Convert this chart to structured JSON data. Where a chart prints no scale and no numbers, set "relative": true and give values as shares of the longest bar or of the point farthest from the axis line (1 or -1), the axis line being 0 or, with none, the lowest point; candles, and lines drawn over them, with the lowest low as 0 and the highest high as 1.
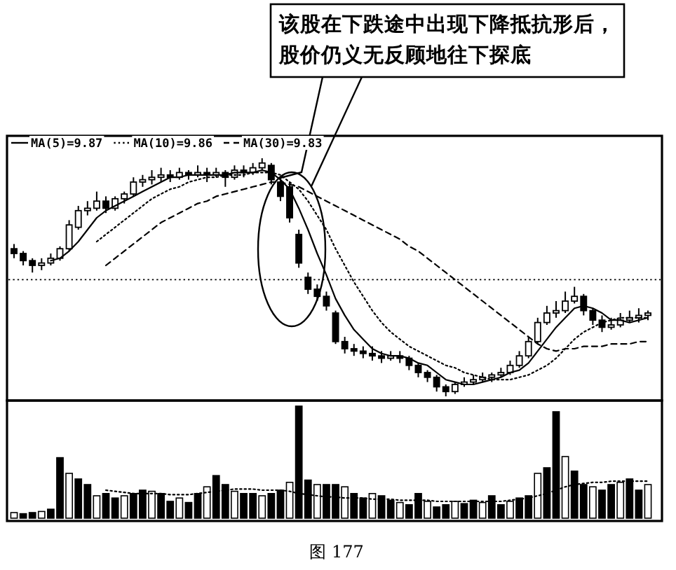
{
  "chart_data": [
    {
      "type": "candlestick",
      "relative": true,
      "legend": "top left",
      "categories": [
        null,
        null,
        null,
        null,
        null,
        null,
        null,
        null,
        null,
        null,
        null,
        null,
        null,
        null,
        null,
        null,
        null,
        null,
        null,
        null,
        null,
        null,
        null,
        null,
        null,
        null,
        null,
        null,
        null,
        null,
        null,
        null,
        null,
        null,
        null,
        null,
        null,
        null,
        null,
        null,
        null,
        null,
        null,
        null,
        null,
        null,
        null,
        null,
        null,
        null,
        null,
        null,
        null,
        null,
        null,
        null,
        null,
        null,
        null,
        null,
        null,
        null,
        null,
        null,
        null,
        null,
        null,
        null,
        null,
        null
      ],
      "ohlc": [
        [
          0.62,
          0.64,
          0.58,
          0.6
        ],
        [
          0.6,
          0.61,
          0.55,
          0.57
        ],
        [
          0.57,
          0.58,
          0.52,
          0.55
        ],
        [
          0.55,
          0.58,
          0.53,
          0.56
        ],
        [
          0.56,
          0.6,
          0.55,
          0.58
        ],
        [
          0.58,
          0.63,
          0.57,
          0.62
        ],
        [
          0.62,
          0.74,
          0.61,
          0.72
        ],
        [
          0.71,
          0.8,
          0.7,
          0.78
        ],
        [
          0.78,
          0.82,
          0.76,
          0.79
        ],
        [
          0.79,
          0.86,
          0.78,
          0.82
        ],
        [
          0.82,
          0.84,
          0.77,
          0.79
        ],
        [
          0.79,
          0.84,
          0.78,
          0.83
        ],
        [
          0.83,
          0.86,
          0.81,
          0.85
        ],
        [
          0.85,
          0.92,
          0.84,
          0.9
        ],
        [
          0.9,
          0.93,
          0.88,
          0.91
        ],
        [
          0.91,
          0.95,
          0.89,
          0.92
        ],
        [
          0.92,
          0.96,
          0.9,
          0.93
        ],
        [
          0.93,
          0.95,
          0.9,
          0.92
        ],
        [
          0.92,
          0.96,
          0.91,
          0.94
        ],
        [
          0.94,
          0.95,
          0.91,
          0.93
        ],
        [
          0.93,
          0.97,
          0.92,
          0.94
        ],
        [
          0.94,
          0.96,
          0.9,
          0.93
        ],
        [
          0.93,
          0.96,
          0.92,
          0.94
        ],
        [
          0.94,
          0.95,
          0.88,
          0.92
        ],
        [
          0.92,
          0.97,
          0.91,
          0.95
        ],
        [
          0.95,
          0.97,
          0.92,
          0.94
        ],
        [
          0.94,
          0.98,
          0.93,
          0.96
        ],
        [
          0.96,
          1.0,
          0.95,
          0.98
        ],
        [
          0.97,
          0.98,
          0.89,
          0.91
        ],
        [
          0.9,
          0.92,
          0.82,
          0.84
        ],
        [
          0.88,
          0.9,
          0.73,
          0.75
        ],
        [
          0.68,
          0.7,
          0.54,
          0.56
        ],
        [
          0.5,
          0.52,
          0.43,
          0.45
        ],
        [
          0.45,
          0.47,
          0.4,
          0.42
        ],
        [
          0.42,
          0.44,
          0.36,
          0.38
        ],
        [
          0.35,
          0.36,
          0.22,
          0.23
        ],
        [
          0.23,
          0.25,
          0.18,
          0.2
        ],
        [
          0.2,
          0.22,
          0.17,
          0.19
        ],
        [
          0.19,
          0.21,
          0.16,
          0.18
        ],
        [
          0.18,
          0.21,
          0.15,
          0.17
        ],
        [
          0.17,
          0.19,
          0.14,
          0.16
        ],
        [
          0.16,
          0.19,
          0.15,
          0.17
        ],
        [
          0.17,
          0.19,
          0.14,
          0.16
        ],
        [
          0.16,
          0.17,
          0.11,
          0.13
        ],
        [
          0.13,
          0.14,
          0.08,
          0.1
        ],
        [
          0.1,
          0.11,
          0.06,
          0.08
        ],
        [
          0.08,
          0.09,
          0.02,
          0.04
        ],
        [
          0.04,
          0.05,
          0.0,
          0.02
        ],
        [
          0.02,
          0.06,
          0.01,
          0.05
        ],
        [
          0.05,
          0.08,
          0.04,
          0.06
        ],
        [
          0.06,
          0.09,
          0.05,
          0.07
        ],
        [
          0.07,
          0.1,
          0.06,
          0.08
        ],
        [
          0.08,
          0.1,
          0.06,
          0.09
        ],
        [
          0.09,
          0.12,
          0.08,
          0.1
        ],
        [
          0.1,
          0.15,
          0.09,
          0.13
        ],
        [
          0.13,
          0.19,
          0.12,
          0.17
        ],
        [
          0.17,
          0.25,
          0.16,
          0.23
        ],
        [
          0.23,
          0.33,
          0.22,
          0.31
        ],
        [
          0.31,
          0.38,
          0.3,
          0.35
        ],
        [
          0.35,
          0.4,
          0.33,
          0.36
        ],
        [
          0.36,
          0.44,
          0.35,
          0.4
        ],
        [
          0.4,
          0.46,
          0.39,
          0.42
        ],
        [
          0.42,
          0.43,
          0.34,
          0.36
        ],
        [
          0.36,
          0.37,
          0.3,
          0.32
        ],
        [
          0.32,
          0.34,
          0.27,
          0.29
        ],
        [
          0.29,
          0.33,
          0.28,
          0.3
        ],
        [
          0.3,
          0.35,
          0.29,
          0.32
        ],
        [
          0.32,
          0.36,
          0.31,
          0.33
        ],
        [
          0.33,
          0.37,
          0.31,
          0.34
        ],
        [
          0.34,
          0.36,
          0.32,
          0.35
        ]
      ],
      "series": [
        {
          "name": "MA(5)=9.87",
          "type": "line",
          "line_style": "solid",
          "color": "#000000",
          "values": [
            null,
            null,
            null,
            null,
            0.57,
            0.58,
            0.61,
            0.65,
            0.7,
            0.75,
            0.78,
            0.8,
            0.82,
            0.84,
            0.86,
            0.88,
            0.9,
            0.92,
            0.92,
            0.93,
            0.93,
            0.93,
            0.93,
            0.93,
            0.94,
            0.94,
            0.94,
            0.95,
            0.94,
            0.91,
            0.87,
            0.79,
            0.7,
            0.6,
            0.51,
            0.41,
            0.34,
            0.28,
            0.24,
            0.2,
            0.18,
            0.17,
            0.17,
            0.16,
            0.14,
            0.13,
            0.1,
            0.07,
            0.06,
            0.05,
            0.05,
            0.06,
            0.07,
            0.08,
            0.1,
            0.11,
            0.14,
            0.19,
            0.24,
            0.29,
            0.33,
            0.37,
            0.38,
            0.37,
            0.35,
            0.32,
            0.32,
            0.31,
            0.32,
            0.33
          ]
        },
        {
          "name": "MA(10)=9.86",
          "type": "line",
          "line_style": "dotted",
          "color": "#000000",
          "values": [
            null,
            null,
            null,
            null,
            null,
            null,
            null,
            null,
            null,
            0.65,
            0.68,
            0.71,
            0.74,
            0.77,
            0.8,
            0.83,
            0.85,
            0.87,
            0.88,
            0.9,
            0.91,
            0.92,
            0.92,
            0.93,
            0.93,
            0.93,
            0.94,
            0.94,
            0.94,
            0.93,
            0.9,
            0.87,
            0.82,
            0.76,
            0.7,
            0.62,
            0.55,
            0.48,
            0.42,
            0.36,
            0.31,
            0.27,
            0.24,
            0.21,
            0.19,
            0.17,
            0.15,
            0.13,
            0.12,
            0.1,
            0.09,
            0.08,
            0.07,
            0.07,
            0.07,
            0.08,
            0.09,
            0.11,
            0.13,
            0.16,
            0.2,
            0.24,
            0.27,
            0.29,
            0.31,
            0.32,
            0.33,
            0.33,
            0.33,
            0.33
          ]
        },
        {
          "name": "MA(30)=9.83",
          "type": "line",
          "line_style": "dashed",
          "color": "#000000",
          "values": [
            null,
            null,
            null,
            null,
            null,
            null,
            null,
            null,
            null,
            null,
            0.55,
            0.58,
            0.61,
            0.64,
            0.67,
            0.7,
            0.73,
            0.75,
            0.77,
            0.79,
            0.81,
            0.82,
            0.84,
            0.85,
            0.86,
            0.87,
            0.88,
            0.89,
            0.9,
            0.9,
            0.89,
            0.88,
            0.86,
            0.84,
            0.82,
            0.8,
            0.78,
            0.76,
            0.74,
            0.72,
            0.7,
            0.68,
            0.66,
            0.63,
            0.61,
            0.58,
            0.55,
            0.52,
            0.49,
            0.46,
            0.43,
            0.4,
            0.37,
            0.34,
            0.31,
            0.28,
            0.25,
            0.22,
            0.2,
            0.19,
            0.2,
            0.2,
            0.21,
            0.21,
            0.21,
            0.22,
            0.22,
            0.22,
            0.23,
            0.23
          ]
        }
      ],
      "ref_lines": [
        {
          "axis": "y",
          "value": 0.49,
          "line_style": "dotted"
        }
      ],
      "annotations": [
        "该股在下跌途中出现下降抵抗形后，",
        "股价仍义无反顾地往下探底",
        "图 177"
      ]
    },
    {
      "type": "bar",
      "relative": true,
      "categories": [
        null,
        null,
        null,
        null,
        null,
        null,
        null,
        null,
        null,
        null,
        null,
        null,
        null,
        null,
        null,
        null,
        null,
        null,
        null,
        null,
        null,
        null,
        null,
        null,
        null,
        null,
        null,
        null,
        null,
        null,
        null,
        null,
        null,
        null,
        null,
        null,
        null,
        null,
        null,
        null,
        null,
        null,
        null,
        null,
        null,
        null,
        null,
        null,
        null,
        null,
        null,
        null,
        null,
        null,
        null,
        null,
        null,
        null,
        null,
        null,
        null,
        null,
        null,
        null,
        null,
        null,
        null,
        null,
        null,
        null
      ],
      "series": [
        {
          "type": "bar",
          "color": "#000000",
          "values": [
            0.05,
            0.04,
            0.05,
            0.06,
            0.08,
            0.54,
            0.4,
            0.35,
            0.3,
            0.2,
            0.22,
            0.18,
            0.2,
            0.22,
            0.25,
            0.24,
            0.22,
            0.15,
            0.18,
            0.14,
            0.22,
            0.28,
            0.38,
            0.3,
            0.24,
            0.22,
            0.22,
            0.2,
            0.22,
            0.25,
            0.32,
            1.0,
            0.34,
            0.3,
            0.3,
            0.3,
            0.28,
            0.22,
            0.18,
            0.22,
            0.2,
            0.16,
            0.14,
            0.12,
            0.22,
            0.15,
            0.1,
            0.12,
            0.15,
            0.13,
            0.16,
            0.14,
            0.2,
            0.12,
            0.15,
            0.18,
            0.2,
            0.4,
            0.45,
            0.95,
            0.55,
            0.42,
            0.3,
            0.28,
            0.25,
            0.3,
            0.32,
            0.35,
            0.25,
            0.3
          ]
        },
        {
          "type": "line",
          "line_style": "dotted",
          "color": "#000000",
          "values": [
            null,
            null,
            null,
            null,
            null,
            null,
            null,
            null,
            null,
            null,
            0.25,
            0.24,
            0.23,
            0.22,
            0.22,
            0.22,
            0.22,
            0.21,
            0.21,
            0.21,
            0.22,
            0.23,
            0.24,
            0.25,
            0.26,
            0.26,
            0.26,
            0.25,
            0.25,
            0.25,
            0.24,
            0.22,
            0.21,
            0.2,
            0.19,
            0.19,
            0.18,
            0.18,
            0.18,
            0.17,
            0.17,
            0.17,
            0.16,
            0.16,
            0.16,
            0.16,
            0.15,
            0.15,
            0.15,
            0.15,
            0.15,
            0.15,
            0.15,
            0.15,
            0.16,
            0.17,
            0.18,
            0.2,
            0.22,
            0.25,
            0.28,
            0.3,
            0.31,
            0.32,
            0.32,
            0.33,
            0.33,
            0.33,
            0.33,
            0.33
          ]
        }
      ]
    }
  ]
}
